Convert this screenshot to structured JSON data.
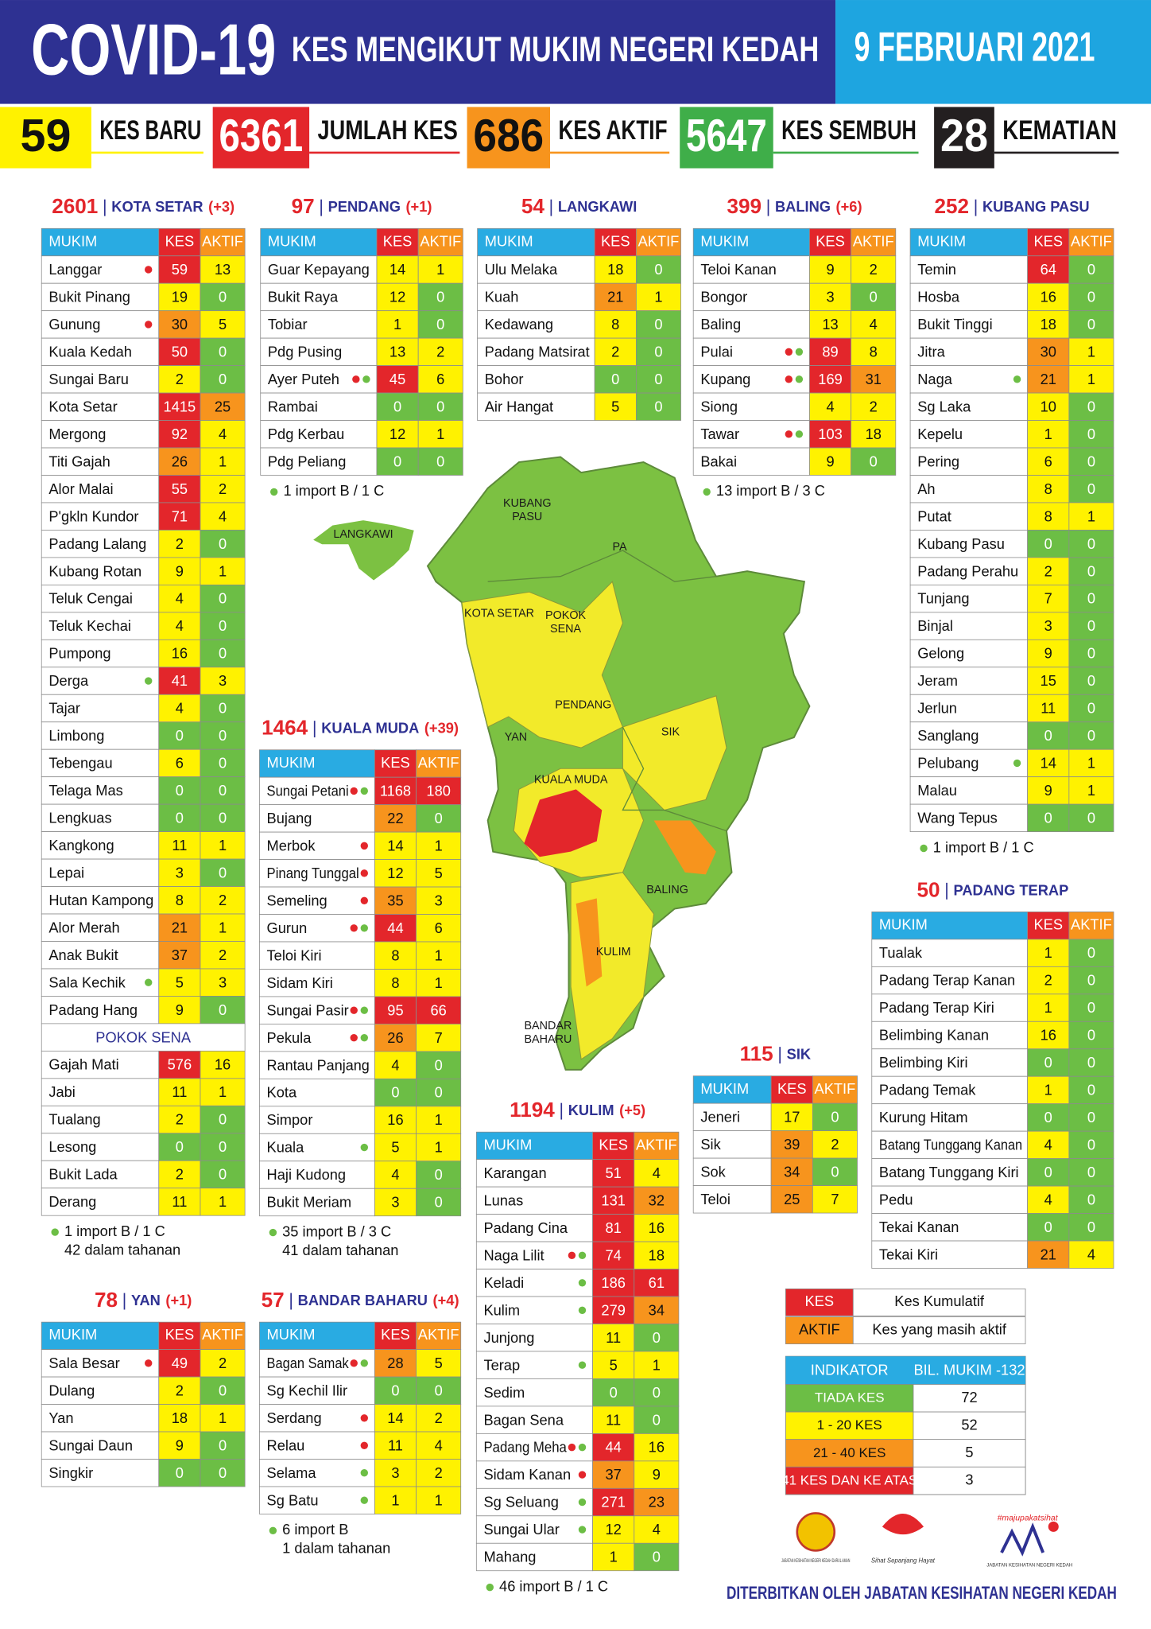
{
  "header": {
    "title": "COVID-19",
    "subtitle": "KES MENGIKUT MUKIM NEGERI KEDAH",
    "date": "9 FEBRUARI 2021"
  },
  "summary": [
    {
      "value": 59,
      "label": "KES BARU",
      "color": "#fff200"
    },
    {
      "value": 6361,
      "label": "JUMLAH KES",
      "color": "#e3262b"
    },
    {
      "value": 686,
      "label": "KES AKTIF",
      "color": "#f7941d"
    },
    {
      "value": 5647,
      "label": "KES SEMBUH",
      "color": "#3fae49"
    },
    {
      "value": 28,
      "label": "KEMATIAN",
      "color": "#231f20"
    }
  ],
  "table_columns": [
    "MUKIM",
    "KES",
    "AKTIF"
  ],
  "districts": [
    {
      "total": 2601,
      "name": "KOTA SETAR",
      "change": "(+3)",
      "rows": [
        [
          "Langgar",
          59,
          13,
          [
            "#e3262b"
          ]
        ],
        [
          "Bukit Pinang",
          19,
          0
        ],
        [
          "Gunung",
          30,
          5,
          [
            "#e3262b"
          ]
        ],
        [
          "Kuala Kedah",
          50,
          0
        ],
        [
          "Sungai Baru",
          2,
          0
        ],
        [
          "Kota Setar",
          1415,
          25
        ],
        [
          "Mergong",
          92,
          4
        ],
        [
          "Titi Gajah",
          26,
          1
        ],
        [
          "Alor Malai",
          55,
          2
        ],
        [
          "P'gkln Kundor",
          71,
          4
        ],
        [
          "Padang Lalang",
          2,
          0
        ],
        [
          "Kubang Rotan",
          9,
          1
        ],
        [
          "Teluk Cengai",
          4,
          0
        ],
        [
          "Teluk Kechai",
          4,
          0
        ],
        [
          "Pumpong",
          16,
          0
        ],
        [
          "Derga",
          41,
          3,
          [
            "#6cbe45"
          ]
        ],
        [
          "Tajar",
          4,
          0
        ],
        [
          "Limbong",
          0,
          0
        ],
        [
          "Tebengau",
          6,
          0
        ],
        [
          "Telaga Mas",
          0,
          0
        ],
        [
          "Lengkuas",
          0,
          0
        ],
        [
          "Kangkong",
          11,
          1
        ],
        [
          "Lepai",
          3,
          0
        ],
        [
          "Hutan Kampong",
          8,
          2
        ],
        [
          "Alor Merah",
          21,
          1
        ],
        [
          "Anak Bukit",
          37,
          2
        ],
        [
          "Sala Kechik",
          5,
          3,
          [
            "#6cbe45"
          ]
        ],
        [
          "Padang Hang",
          9,
          0
        ]
      ],
      "sub": {
        "name": "POKOK SENA",
        "rows": [
          [
            "Gajah Mati",
            576,
            16
          ],
          [
            "Jabi",
            11,
            1
          ],
          [
            "Tualang",
            2,
            0
          ],
          [
            "Lesong",
            0,
            0
          ],
          [
            "Bukit Lada",
            2,
            0
          ],
          [
            "Derang",
            11,
            1
          ]
        ]
      },
      "notes": [
        "1 import B / 1 C",
        "42 dalam tahanan"
      ]
    },
    {
      "total": 97,
      "name": "PENDANG",
      "change": "(+1)",
      "rows": [
        [
          "Guar Kepayang",
          14,
          1
        ],
        [
          "Bukit Raya",
          12,
          0
        ],
        [
          "Tobiar",
          1,
          0
        ],
        [
          "Pdg Pusing",
          13,
          2
        ],
        [
          "Ayer Puteh",
          45,
          6,
          [
            "#e3262b",
            "#6cbe45"
          ]
        ],
        [
          "Rambai",
          0,
          0
        ],
        [
          "Pdg Kerbau",
          12,
          1
        ],
        [
          "Pdg Peliang",
          0,
          0
        ]
      ],
      "notes": [
        "1 import B / 1 C"
      ]
    },
    {
      "total": 54,
      "name": "LANGKAWI",
      "rows": [
        [
          "Ulu Melaka",
          18,
          0
        ],
        [
          "Kuah",
          21,
          1
        ],
        [
          "Kedawang",
          8,
          0
        ],
        [
          "Padang Matsirat",
          2,
          0
        ],
        [
          "Bohor",
          0,
          0
        ],
        [
          "Air Hangat",
          5,
          0
        ]
      ]
    },
    {
      "total": 399,
      "name": "BALING",
      "change": "(+6)",
      "rows": [
        [
          "Teloi Kanan",
          9,
          2
        ],
        [
          "Bongor",
          3,
          0
        ],
        [
          "Baling",
          13,
          4
        ],
        [
          "Pulai",
          89,
          8,
          [
            "#e3262b",
            "#6cbe45"
          ]
        ],
        [
          "Kupang",
          169,
          31,
          [
            "#e3262b",
            "#6cbe45"
          ]
        ],
        [
          "Siong",
          4,
          2
        ],
        [
          "Tawar",
          103,
          18,
          [
            "#e3262b",
            "#6cbe45"
          ]
        ],
        [
          "Bakai",
          9,
          0
        ]
      ],
      "notes": [
        "13 import B / 3 C"
      ]
    },
    {
      "total": 252,
      "name": "KUBANG PASU",
      "rows": [
        [
          "Temin",
          64,
          0
        ],
        [
          "Hosba",
          16,
          0
        ],
        [
          "Bukit Tinggi",
          18,
          0
        ],
        [
          "Jitra",
          30,
          1
        ],
        [
          "Naga",
          21,
          1,
          [
            "#6cbe45"
          ]
        ],
        [
          "Sg Laka",
          10,
          0
        ],
        [
          "Kepelu",
          1,
          0
        ],
        [
          "Pering",
          6,
          0
        ],
        [
          "Ah",
          8,
          0
        ],
        [
          "Putat",
          8,
          1
        ],
        [
          "Kubang Pasu",
          0,
          0
        ],
        [
          "Padang Perahu",
          2,
          0
        ],
        [
          "Tunjang",
          7,
          0
        ],
        [
          "Binjal",
          3,
          0
        ],
        [
          "Gelong",
          9,
          0
        ],
        [
          "Jeram",
          15,
          0
        ],
        [
          "Jerlun",
          11,
          0
        ],
        [
          "Sanglang",
          0,
          0
        ],
        [
          "Pelubang",
          14,
          1,
          [
            "#6cbe45"
          ]
        ],
        [
          "Malau",
          9,
          1
        ],
        [
          "Wang Tepus",
          0,
          0
        ]
      ],
      "notes": [
        "1 import B / 1 C"
      ]
    },
    {
      "total": 1464,
      "name": "KUALA MUDA",
      "change": "(+39)",
      "rows": [
        [
          "Sungai Petani",
          1168,
          180,
          [
            "#e3262b",
            "#6cbe45"
          ]
        ],
        [
          "Bujang",
          22,
          0
        ],
        [
          "Merbok",
          14,
          1,
          [
            "#e3262b"
          ]
        ],
        [
          "Pinang Tunggal",
          12,
          5,
          [
            "#e3262b"
          ]
        ],
        [
          "Semeling",
          35,
          3,
          [
            "#e3262b"
          ]
        ],
        [
          "Gurun",
          44,
          6,
          [
            "#e3262b",
            "#6cbe45"
          ]
        ],
        [
          "Teloi Kiri",
          8,
          1
        ],
        [
          "Sidam Kiri",
          8,
          1
        ],
        [
          "Sungai Pasir",
          95,
          66,
          [
            "#e3262b",
            "#6cbe45"
          ]
        ],
        [
          "Pekula",
          26,
          7,
          [
            "#e3262b",
            "#6cbe45"
          ]
        ],
        [
          "Rantau Panjang",
          4,
          0
        ],
        [
          "Kota",
          0,
          0
        ],
        [
          "Simpor",
          16,
          1
        ],
        [
          "Kuala",
          5,
          1,
          [
            "#6cbe45"
          ]
        ],
        [
          "Haji Kudong",
          4,
          0
        ],
        [
          "Bukit Meriam",
          3,
          0
        ]
      ],
      "notes": [
        "35 import B / 3 C",
        "41 dalam tahanan"
      ]
    },
    {
      "total": 50,
      "name": "PADANG TERAP",
      "rows": [
        [
          "Tualak",
          1,
          0
        ],
        [
          "Padang Terap Kanan",
          2,
          0
        ],
        [
          "Padang Terap Kiri",
          1,
          0
        ],
        [
          "Belimbing Kanan",
          16,
          0
        ],
        [
          "Belimbing Kiri",
          0,
          0
        ],
        [
          "Padang Temak",
          1,
          0
        ],
        [
          "Kurung Hitam",
          0,
          0
        ],
        [
          "Batang Tunggang Kanan",
          4,
          0
        ],
        [
          "Batang Tunggang Kiri",
          0,
          0
        ],
        [
          "Pedu",
          4,
          0
        ],
        [
          "Tekai Kanan",
          0,
          0
        ],
        [
          "Tekai Kiri",
          21,
          4
        ]
      ]
    },
    {
      "total": 115,
      "name": "SIK",
      "rows": [
        [
          "Jeneri",
          17,
          0
        ],
        [
          "Sik",
          39,
          2
        ],
        [
          "Sok",
          34,
          0
        ],
        [
          "Teloi",
          25,
          7
        ]
      ]
    },
    {
      "total": 1194,
      "name": "KULIM",
      "change": "(+5)",
      "rows": [
        [
          "Karangan",
          51,
          4
        ],
        [
          "Lunas",
          131,
          32
        ],
        [
          "Padang Cina",
          81,
          16
        ],
        [
          "Naga Lilit",
          74,
          18,
          [
            "#e3262b",
            "#6cbe45"
          ]
        ],
        [
          "Keladi",
          186,
          61,
          [
            "#6cbe45"
          ]
        ],
        [
          "Kulim",
          279,
          34,
          [
            "#6cbe45"
          ]
        ],
        [
          "Junjong",
          11,
          0
        ],
        [
          "Terap",
          5,
          1,
          [
            "#6cbe45"
          ]
        ],
        [
          "Sedim",
          0,
          0
        ],
        [
          "Bagan Sena",
          11,
          0
        ],
        [
          "Padang Meha",
          44,
          16,
          [
            "#e3262b",
            "#6cbe45"
          ]
        ],
        [
          "Sidam Kanan",
          37,
          9,
          [
            "#e3262b"
          ]
        ],
        [
          "Sg Seluang",
          271,
          23,
          [
            "#6cbe45"
          ]
        ],
        [
          "Sungai Ular",
          12,
          4,
          [
            "#6cbe45"
          ]
        ],
        [
          "Mahang",
          1,
          0
        ]
      ],
      "notes": [
        "46 import B / 1 C"
      ]
    },
    {
      "total": 78,
      "name": "YAN",
      "change": "(+1)",
      "rows": [
        [
          "Sala Besar",
          49,
          2,
          [
            "#e3262b"
          ]
        ],
        [
          "Dulang",
          2,
          0
        ],
        [
          "Yan",
          18,
          1
        ],
        [
          "Sungai Daun",
          9,
          0
        ],
        [
          "Singkir",
          0,
          0
        ]
      ]
    },
    {
      "total": 57,
      "name": "BANDAR BAHARU",
      "change": "(+4)",
      "rows": [
        [
          "Bagan Samak",
          28,
          5,
          [
            "#e3262b",
            "#6cbe45"
          ]
        ],
        [
          "Sg Kechil Ilir",
          0,
          0
        ],
        [
          "Serdang",
          14,
          2,
          [
            "#e3262b"
          ]
        ],
        [
          "Relau",
          11,
          4,
          [
            "#e3262b"
          ]
        ],
        [
          "Selama",
          3,
          2,
          [
            "#6cbe45"
          ]
        ],
        [
          "Sg Batu",
          1,
          1,
          [
            "#6cbe45"
          ]
        ]
      ],
      "notes": [
        "6 import B",
        "1 dalam tahanan"
      ]
    }
  ],
  "map": {
    "labels": [
      [
        "KUBANG",
        "PASU"
      ],
      [
        "LANGKAWI"
      ],
      [
        "PA"
      ],
      [
        "KOTA SETAR"
      ],
      [
        "POKOK",
        "SENA"
      ],
      [
        "PENDANG"
      ],
      [
        "YAN"
      ],
      [
        "SIK"
      ],
      [
        "KUALA MUDA"
      ],
      [
        "BALING"
      ],
      [
        "KULIM"
      ],
      [
        "BANDAR",
        "BAHARU"
      ]
    ]
  },
  "legend": {
    "keys": [
      {
        "key": "KES",
        "text": "Kes Kumulatif",
        "color": "#e3262b"
      },
      {
        "key": "AKTIF",
        "text": "Kes yang masih aktif",
        "color": "#f7941d"
      }
    ],
    "indicator": {
      "columns": [
        "INDIKATOR",
        "BIL. MUKIM -132"
      ],
      "rows": [
        {
          "label": "TIADA KES",
          "count": 72,
          "color": "#6cbe45"
        },
        {
          "label": "1 - 20 KES",
          "count": 52,
          "color": "#fff200"
        },
        {
          "label": "21 - 40 KES",
          "count": 5,
          "color": "#f7941d"
        },
        {
          "label": "41 KES DAN KE ATAS",
          "count": 3,
          "color": "#e3262b"
        }
      ]
    }
  },
  "logos": [
    "JABATAN KESIHATAN NEGERI KEDAH DARUL AMAN",
    "Sihat Sepanjang Hayat",
    "#majupakatsihat",
    "JABATAN KESIHATAN NEGERI KEDAH"
  ],
  "footer": "DITERBITKAN OLEH JABATAN KESIHATAN NEGERI KEDAH"
}
